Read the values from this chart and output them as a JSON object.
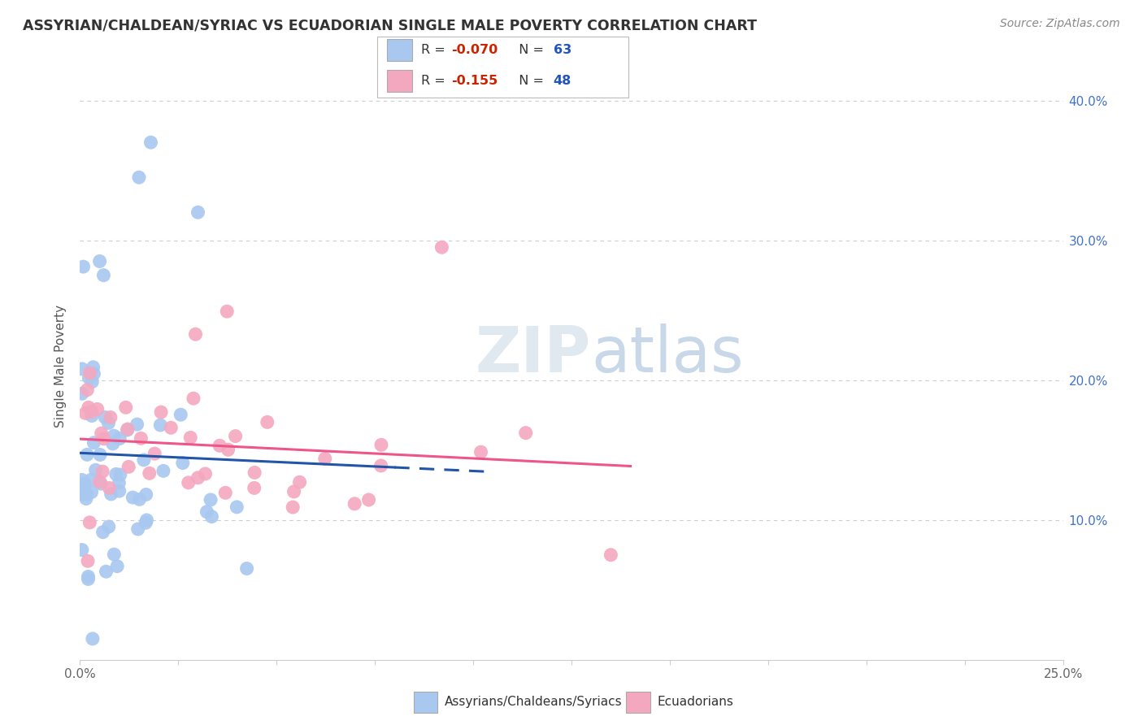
{
  "title": "ASSYRIAN/CHALDEAN/SYRIAC VS ECUADORIAN SINGLE MALE POVERTY CORRELATION CHART",
  "source": "Source: ZipAtlas.com",
  "ylabel": "Single Male Poverty",
  "xlim": [
    0.0,
    25.0
  ],
  "ylim": [
    0.0,
    42.0
  ],
  "series1_color": "#A8C8F0",
  "series2_color": "#F4A8C0",
  "series1_line_color": "#2255AA",
  "series2_line_color": "#EE5588",
  "R1": -0.07,
  "N1": 63,
  "R2": -0.155,
  "N2": 48,
  "background_color": "#FFFFFF",
  "grid_color": "#CCCCCC",
  "title_color": "#333333",
  "legend1_label": "Assyrians/Chaldeans/Syriacs",
  "legend2_label": "Ecuadorians",
  "watermark_color": "#DDDDDD",
  "right_tick_color": "#4472C4",
  "r_color": "#CC2200",
  "n_color": "#2255BB"
}
